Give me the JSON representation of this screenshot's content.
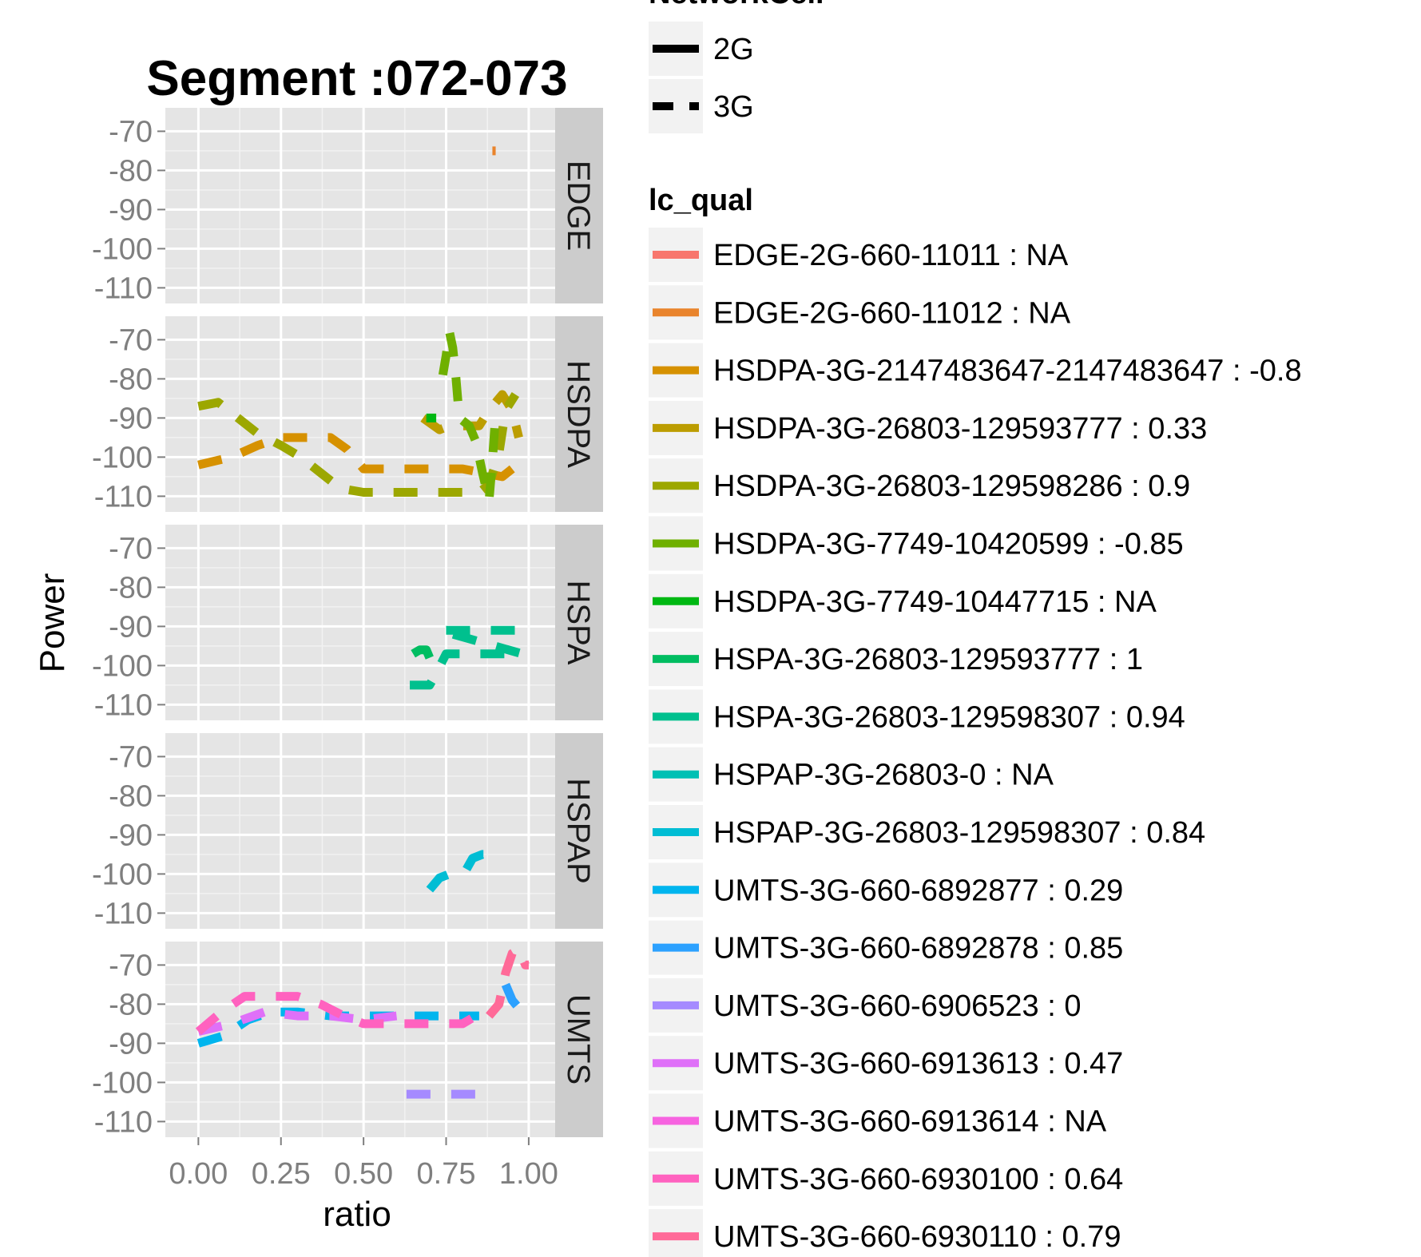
{
  "chart_data": {
    "type": "line",
    "title": "Segment :072-073",
    "xlabel": "ratio",
    "ylabel": "Power",
    "xlim": [
      -0.1,
      1.08
    ],
    "ylim": [
      -114,
      -64
    ],
    "x_ticks": [
      0,
      0.25,
      0.5,
      0.75,
      1
    ],
    "x_tick_labels": [
      "0.00",
      "0.25",
      "0.50",
      "0.75",
      "1.00"
    ],
    "y_ticks": [
      -110,
      -100,
      -90,
      -80,
      -70
    ],
    "y_tick_labels": [
      "-110",
      "-100",
      "-90",
      "-80",
      "-70"
    ],
    "grid": true,
    "facets": [
      "EDGE",
      "HSDPA",
      "HSPA",
      "HSPAP",
      "UMTS"
    ],
    "legend_networkcell": {
      "title": "NetworkCell",
      "entries": [
        {
          "label": "2G",
          "linetype": "solid"
        },
        {
          "label": "3G",
          "linetype": "dashed"
        }
      ]
    },
    "legend_lc_qual": {
      "title": "lc_qual",
      "entries": [
        {
          "label": "EDGE-2G-660-11011 : NA",
          "color": "#F8766D"
        },
        {
          "label": "EDGE-2G-660-11012 : NA",
          "color": "#E9842C"
        },
        {
          "label": "HSDPA-3G-2147483647-2147483647 : -0.8",
          "color": "#D69100"
        },
        {
          "label": "HSDPA-3G-26803-129593777 : 0.33",
          "color": "#BC9D00"
        },
        {
          "label": "HSDPA-3G-26803-129598286 : 0.9",
          "color": "#9CA700"
        },
        {
          "label": "HSDPA-3G-7749-10420599 : -0.85",
          "color": "#6FB000"
        },
        {
          "label": "HSDPA-3G-7749-10447715 : NA",
          "color": "#00B813"
        },
        {
          "label": "HSPA-3G-26803-129593777 : 1",
          "color": "#00BD61"
        },
        {
          "label": "HSPA-3G-26803-129598307 : 0.94",
          "color": "#00C08E"
        },
        {
          "label": "HSPAP-3G-26803-0 : NA",
          "color": "#00C0B4"
        },
        {
          "label": "HSPAP-3G-26803-129598307 : 0.84",
          "color": "#00BDD4"
        },
        {
          "label": "UMTS-3G-660-6892877 : 0.29",
          "color": "#00B5EE"
        },
        {
          "label": "UMTS-3G-660-6892878 : 0.85",
          "color": "#2CA1FF"
        },
        {
          "label": "UMTS-3G-660-6906523 : 0",
          "color": "#A58AFF"
        },
        {
          "label": "UMTS-3G-660-6913613 : 0.47",
          "color": "#DF70F8"
        },
        {
          "label": "UMTS-3G-660-6913614 : NA",
          "color": "#F763E0"
        },
        {
          "label": "UMTS-3G-660-6930100 : 0.64",
          "color": "#FF62BF"
        },
        {
          "label": "UMTS-3G-660-6930110 : 0.79",
          "color": "#FF6A98"
        }
      ]
    },
    "series": [
      {
        "name": "EDGE-2G-660-11012 : NA",
        "facet": "EDGE",
        "color": "#E9842C",
        "dashed": true,
        "x": [
          0.89,
          0.9
        ],
        "y": [
          -75,
          -75
        ]
      },
      {
        "name": "HSDPA-3G-2147483647-2147483647 : -0.8",
        "facet": "HSDPA",
        "color": "#D69100",
        "dashed": true,
        "x": [
          0,
          0.1,
          0.18,
          0.25,
          0.33,
          0.4,
          0.45,
          0.5,
          0.6,
          0.7,
          0.8,
          0.86,
          0.92,
          0.95
        ],
        "y": [
          -102,
          -100,
          -97,
          -95,
          -95,
          -95,
          -98,
          -103,
          -103,
          -103,
          -103,
          -104,
          -105,
          -103
        ]
      },
      {
        "name": "HSDPA-3G-26803-129593777 : 0.33",
        "facet": "HSDPA",
        "color": "#BC9D00",
        "dashed": true,
        "x": [
          0.68,
          0.73,
          0.76,
          0.8,
          0.85,
          0.88,
          0.92,
          0.95,
          0.97
        ],
        "y": [
          -90,
          -93,
          -92,
          -92,
          -92,
          -88,
          -84,
          -88,
          -95
        ]
      },
      {
        "name": "HSDPA-3G-26803-129598286 : 0.9",
        "facet": "HSDPA",
        "color": "#9CA700",
        "dashed": true,
        "x": [
          0,
          0.06,
          0.12,
          0.18,
          0.25,
          0.31,
          0.37,
          0.43,
          0.5,
          0.6,
          0.7,
          0.78,
          0.85,
          0.88,
          0.91,
          0.93,
          0.96
        ],
        "y": [
          -87,
          -86,
          -90,
          -94,
          -97,
          -100,
          -104,
          -108,
          -109,
          -109,
          -109,
          -109,
          -109,
          -107,
          -99,
          -88,
          -84
        ]
      },
      {
        "name": "HSDPA-3G-7749-10420599 : -0.85",
        "facet": "HSDPA",
        "color": "#6FB000",
        "dashed": true,
        "x": [
          0.74,
          0.75,
          0.76,
          0.77,
          0.78,
          0.79,
          0.82,
          0.84,
          0.86,
          0.88,
          0.89,
          0.9
        ],
        "y": [
          -79,
          -74,
          -68,
          -72,
          -80,
          -90,
          -92,
          -96,
          -104,
          -111,
          -101,
          -89
        ]
      },
      {
        "name": "HSDPA-3G-7749-10447715 : NA",
        "facet": "HSDPA",
        "color": "#00B813",
        "dashed": true,
        "x": [
          0.69,
          0.72
        ],
        "y": [
          -90,
          -90
        ]
      },
      {
        "name": "HSPA-3G-26803-129593777 : 1",
        "facet": "HSPA",
        "color": "#00BD61",
        "dashed": true,
        "x": [
          0.65,
          0.67,
          0.68,
          0.69,
          0.7
        ],
        "y": [
          -97,
          -96,
          -96,
          -96,
          -98
        ]
      },
      {
        "name": "HSPA-3G-26803-129598307 : 0.94",
        "facet": "HSPA",
        "color": "#00C08E",
        "dashed": true,
        "x": [
          0.64,
          0.7,
          0.72,
          0.75,
          0.8,
          0.9,
          0.98,
          0.73,
          0.76,
          0.8,
          0.9,
          0.98
        ],
        "y": [
          -105,
          -105,
          -102,
          -97,
          -97,
          -97,
          -97,
          -91,
          -91,
          -91,
          -91,
          -91
        ]
      },
      {
        "name": "HSPAP-3G-26803-129598307 : 0.84",
        "facet": "HSPAP",
        "color": "#00BDD4",
        "dashed": true,
        "x": [
          0.7,
          0.73,
          0.76,
          0.78,
          0.81,
          0.83,
          0.86,
          0.89
        ],
        "y": [
          -104,
          -101,
          -100,
          -99,
          -99,
          -96,
          -95,
          -95
        ]
      },
      {
        "name": "UMTS-3G-660-6892877 : 0.29",
        "facet": "UMTS",
        "color": "#00B5EE",
        "dashed": true,
        "x": [
          0,
          0.08,
          0.15,
          0.22,
          0.3,
          0.4,
          0.5,
          0.6,
          0.7,
          0.8,
          0.85
        ],
        "y": [
          -90,
          -88,
          -84,
          -82,
          -82,
          -83,
          -83,
          -83,
          -83,
          -83,
          -83
        ]
      },
      {
        "name": "UMTS-3G-660-6892878 : 0.85",
        "facet": "UMTS",
        "color": "#2CA1FF",
        "dashed": true,
        "x": [
          0.93,
          0.95,
          0.97,
          0.99
        ],
        "y": [
          -75,
          -79,
          -81,
          -82
        ]
      },
      {
        "name": "UMTS-3G-660-6906523 : 0",
        "facet": "UMTS",
        "color": "#A58AFF",
        "dashed": true,
        "x": [
          0.63,
          0.75,
          0.9
        ],
        "y": [
          -103,
          -103,
          -103
        ]
      },
      {
        "name": "UMTS-3G-660-6913613 : 0.47",
        "facet": "UMTS",
        "color": "#DF70F8",
        "dashed": true,
        "x": [
          0,
          0.1,
          0.2,
          0.3,
          0.4,
          0.5,
          0.6
        ],
        "y": [
          -87,
          -85,
          -82,
          -83,
          -83,
          -84,
          -83
        ]
      },
      {
        "name": "UMTS-3G-660-6930100 : 0.64",
        "facet": "UMTS",
        "color": "#FF62BF",
        "dashed": true,
        "x": [
          0,
          0.07,
          0.14,
          0.22,
          0.3,
          0.37,
          0.44,
          0.5,
          0.6,
          0.7,
          0.8,
          0.84
        ],
        "y": [
          -87,
          -82,
          -78,
          -78,
          -78,
          -80,
          -83,
          -85,
          -85,
          -85,
          -85,
          -83
        ]
      },
      {
        "name": "UMTS-3G-660-6930110 : 0.79",
        "facet": "UMTS",
        "color": "#FF6A98",
        "dashed": true,
        "x": [
          0.88,
          0.91,
          0.92,
          0.93,
          0.95,
          0.97,
          0.99,
          1.0
        ],
        "y": [
          -83,
          -80,
          -76,
          -72,
          -67,
          -66,
          -70,
          -70
        ]
      }
    ]
  }
}
